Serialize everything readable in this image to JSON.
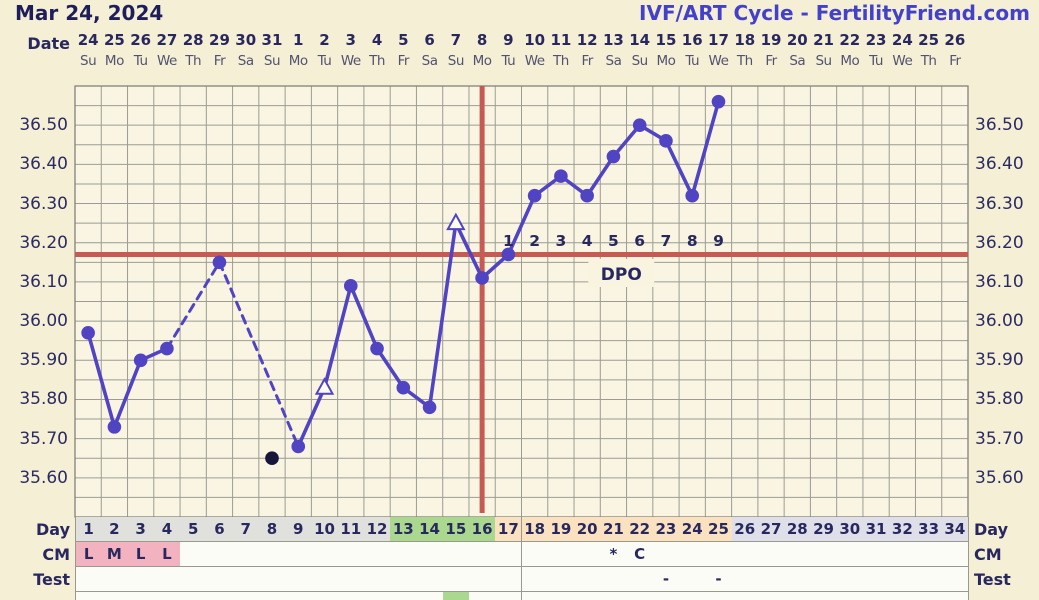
{
  "header": {
    "date_title": "Mar 24, 2024",
    "chart_title": "IVF/ART Cycle - FertilityFriend.com",
    "date_row_label": "Date",
    "dates": [
      "24",
      "25",
      "26",
      "27",
      "28",
      "29",
      "30",
      "31",
      "1",
      "2",
      "3",
      "4",
      "5",
      "6",
      "7",
      "8",
      "9",
      "10",
      "11",
      "12",
      "13",
      "14",
      "15",
      "16",
      "17",
      "18",
      "19",
      "20",
      "21",
      "22",
      "23",
      "24",
      "25",
      "26"
    ],
    "weekdays": [
      "Su",
      "Mo",
      "Tu",
      "We",
      "Th",
      "Fr",
      "Sa",
      "Su",
      "Mo",
      "Tu",
      "We",
      "Th",
      "Fr",
      "Sa",
      "Su",
      "Mo",
      "Tu",
      "We",
      "Th",
      "Fr",
      "Sa",
      "Su",
      "Mo",
      "Tu",
      "We",
      "Th",
      "Fr",
      "Sa",
      "Su",
      "Mo",
      "Tu",
      "We",
      "Th",
      "Fr"
    ]
  },
  "colors": {
    "background": "#f5efd6",
    "plot_background": "#f9f5e2",
    "grid": "#9c9c94",
    "plot_border": "#82827a",
    "navy_text": "#28285e",
    "weekday_text": "#52526f",
    "title_right": "#4341c9",
    "temp_line": "#5044c2",
    "marker_fill": "#5044c2",
    "triangle_fill": "#fdfcf2",
    "excluded_dot": "#16163a",
    "red_line": "#c65b54",
    "dpo_box": "#f8f4e0",
    "cell_gray": "#e0e0dd",
    "cell_lavender": "#dfdfe9",
    "cell_green": "#a9d88e",
    "cell_peach": "#fae2c1",
    "cell_pink": "#f2b2c0",
    "cell_white": "#fcfcf7"
  },
  "chart_data": {
    "type": "line",
    "title": "IVF/ART Cycle - FertilityFriend.com",
    "x_label": "Day",
    "x_days": 34,
    "ylim": [
      35.5,
      36.6
    ],
    "y_minor_step": 0.05,
    "y_tick_values": [
      35.6,
      35.7,
      35.8,
      35.9,
      36.0,
      36.1,
      36.2,
      36.3,
      36.4,
      36.5
    ],
    "y_tick_labels": [
      "35.60",
      "35.70",
      "35.80",
      "35.90",
      "36.00",
      "36.10",
      "36.20",
      "36.30",
      "36.40",
      "36.50"
    ],
    "grid": true,
    "coverline_temp": 36.17,
    "ovulation_line_day": 16,
    "dpo_axis": {
      "label": "DPO",
      "start_day": 17,
      "numbers": [
        "1",
        "2",
        "3",
        "4",
        "5",
        "6",
        "7",
        "8",
        "9"
      ],
      "label_center_day": 21.3
    },
    "points": [
      {
        "day": 1,
        "temp": 35.97
      },
      {
        "day": 2,
        "temp": 35.73
      },
      {
        "day": 3,
        "temp": 35.9
      },
      {
        "day": 4,
        "temp": 35.93
      },
      {
        "day": 6,
        "temp": 36.15
      },
      {
        "day": 9,
        "temp": 35.68
      },
      {
        "day": 10,
        "temp": 35.83,
        "marker": "triangle"
      },
      {
        "day": 11,
        "temp": 36.09
      },
      {
        "day": 12,
        "temp": 35.93
      },
      {
        "day": 13,
        "temp": 35.83
      },
      {
        "day": 14,
        "temp": 35.78
      },
      {
        "day": 15,
        "temp": 36.25,
        "marker": "triangle"
      },
      {
        "day": 16,
        "temp": 36.11
      },
      {
        "day": 17,
        "temp": 36.17
      },
      {
        "day": 18,
        "temp": 36.32
      },
      {
        "day": 19,
        "temp": 36.37
      },
      {
        "day": 20,
        "temp": 36.32
      },
      {
        "day": 21,
        "temp": 36.42
      },
      {
        "day": 22,
        "temp": 36.5
      },
      {
        "day": 23,
        "temp": 36.46
      },
      {
        "day": 24,
        "temp": 36.32
      },
      {
        "day": 25,
        "temp": 36.56
      }
    ],
    "excluded_points": [
      {
        "day": 8,
        "temp": 35.65
      }
    ],
    "line_rule": "solid between consecutive days, dashed across missing days"
  },
  "table": {
    "day_row": {
      "label": "Day",
      "numbers": [
        "1",
        "2",
        "3",
        "4",
        "5",
        "6",
        "7",
        "8",
        "9",
        "10",
        "11",
        "12",
        "13",
        "14",
        "15",
        "16",
        "17",
        "18",
        "19",
        "20",
        "21",
        "22",
        "23",
        "24",
        "25",
        "26",
        "27",
        "28",
        "29",
        "30",
        "31",
        "32",
        "33",
        "34"
      ],
      "phases": [
        {
          "from": 1,
          "to": 12,
          "color_key": "cell_gray"
        },
        {
          "from": 13,
          "to": 16,
          "color_key": "cell_green"
        },
        {
          "from": 17,
          "to": 25,
          "color_key": "cell_peach"
        },
        {
          "from": 26,
          "to": 34,
          "color_key": "cell_lavender"
        }
      ]
    },
    "cm_row": {
      "label": "CM",
      "entries": [
        {
          "day": 1,
          "text": "L",
          "color_key": "cell_pink"
        },
        {
          "day": 2,
          "text": "M",
          "color_key": "cell_pink"
        },
        {
          "day": 3,
          "text": "L",
          "color_key": "cell_pink"
        },
        {
          "day": 4,
          "text": "L",
          "color_key": "cell_pink"
        },
        {
          "day": 21,
          "text": "*"
        },
        {
          "day": 22,
          "text": "C"
        }
      ]
    },
    "test_row": {
      "label": "Test",
      "entries": [
        {
          "day": 23,
          "text": "-"
        },
        {
          "day": 25,
          "text": "-"
        }
      ]
    },
    "partial_row": {
      "entries": [
        {
          "day": 15,
          "color_key": "cell_green"
        }
      ]
    }
  }
}
